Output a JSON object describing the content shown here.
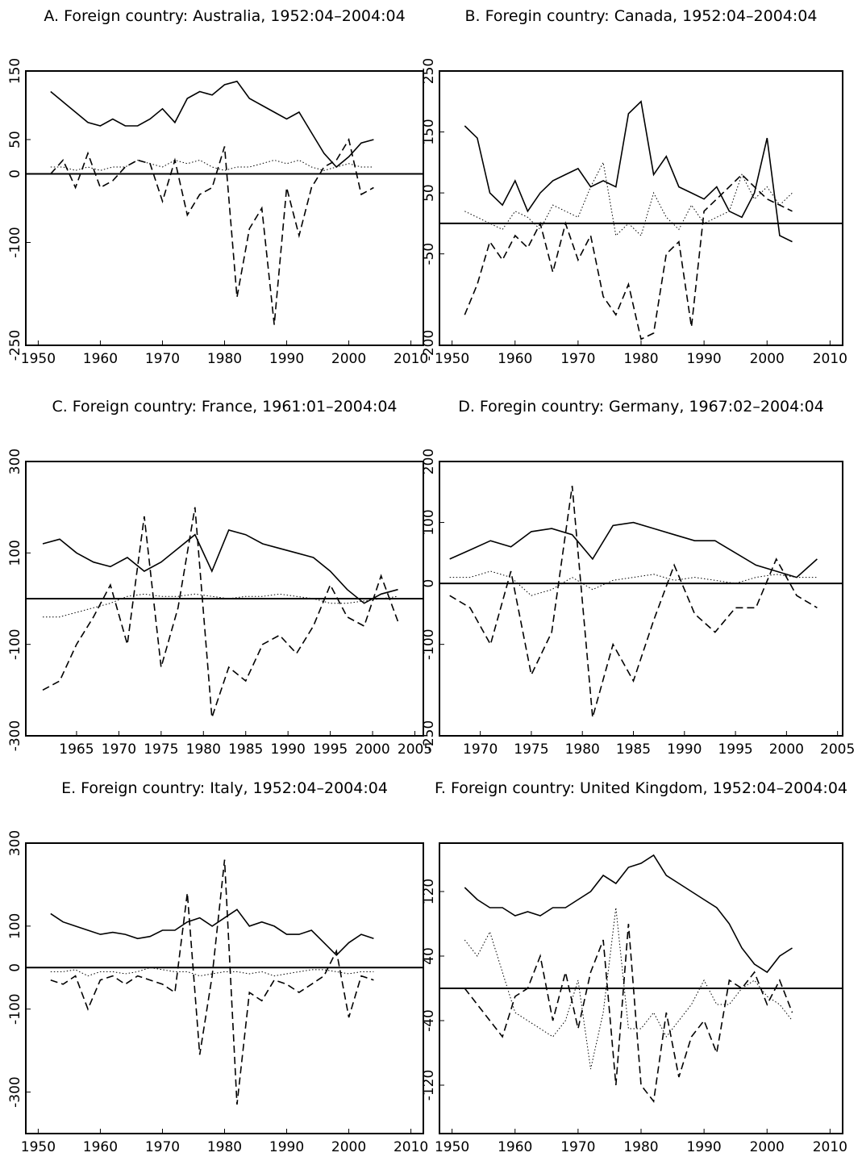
{
  "chart_data": [
    {
      "type": "line",
      "title": "A. Foreign country: Australia, 1952:04–2004:04",
      "x": [
        1952,
        1954,
        1956,
        1958,
        1960,
        1962,
        1964,
        1966,
        1968,
        1970,
        1972,
        1974,
        1976,
        1978,
        1980,
        1982,
        1984,
        1986,
        1988,
        1990,
        1992,
        1994,
        1996,
        1998,
        2000,
        2002,
        2004
      ],
      "series": [
        {
          "color": "#000000",
          "style": "solid",
          "values": [
            120,
            105,
            90,
            75,
            70,
            80,
            70,
            70,
            80,
            95,
            75,
            110,
            120,
            115,
            130,
            135,
            110,
            100,
            90,
            80,
            90,
            60,
            30,
            10,
            25,
            45,
            50
          ]
        },
        {
          "color": "#000000",
          "style": "dashed",
          "values": [
            0,
            20,
            -20,
            30,
            -20,
            -10,
            10,
            20,
            15,
            -40,
            20,
            -60,
            -30,
            -20,
            40,
            -180,
            -80,
            -50,
            -220,
            -20,
            -90,
            -20,
            10,
            20,
            50,
            -30,
            -20
          ]
        },
        {
          "color": "#000000",
          "style": "dotted",
          "values": [
            10,
            10,
            5,
            10,
            5,
            10,
            10,
            20,
            15,
            10,
            20,
            15,
            20,
            10,
            5,
            10,
            10,
            15,
            20,
            15,
            20,
            10,
            5,
            10,
            15,
            10,
            10
          ]
        }
      ],
      "xlim": [
        1948,
        2012
      ],
      "ylim": [
        -250,
        150
      ],
      "xticks": [
        1950,
        1960,
        1970,
        1980,
        1990,
        2000,
        2010
      ],
      "yticks": [
        -250,
        -100,
        0,
        50,
        150
      ],
      "reference_line": 0
    },
    {
      "type": "line",
      "title": "B. Foregin country: Canada, 1952:04–2004:04",
      "x": [
        1952,
        1954,
        1956,
        1958,
        1960,
        1962,
        1964,
        1966,
        1968,
        1970,
        1972,
        1974,
        1976,
        1978,
        1980,
        1982,
        1984,
        1986,
        1988,
        1990,
        1992,
        1994,
        1996,
        1998,
        2000,
        2002,
        2004
      ],
      "series": [
        {
          "color": "#000000",
          "style": "solid",
          "values": [
            160,
            140,
            50,
            30,
            70,
            20,
            50,
            70,
            80,
            90,
            60,
            70,
            60,
            180,
            200,
            80,
            110,
            60,
            50,
            40,
            60,
            20,
            10,
            50,
            140,
            -20,
            -30
          ]
        },
        {
          "color": "#000000",
          "style": "dashed",
          "values": [
            -150,
            -100,
            -30,
            -60,
            -20,
            -40,
            0,
            -80,
            0,
            -60,
            -20,
            -120,
            -150,
            -100,
            -190,
            -180,
            -50,
            -30,
            -170,
            20,
            40,
            60,
            80,
            60,
            40,
            30,
            20
          ]
        },
        {
          "color": "#000000",
          "style": "dotted",
          "values": [
            20,
            10,
            0,
            -10,
            20,
            10,
            -10,
            30,
            20,
            10,
            60,
            100,
            -20,
            0,
            -20,
            50,
            10,
            -10,
            30,
            0,
            10,
            20,
            80,
            40,
            60,
            30,
            50
          ]
        }
      ],
      "xlim": [
        1948,
        2012
      ],
      "ylim": [
        -200,
        250
      ],
      "xticks": [
        1950,
        1960,
        1970,
        1980,
        1990,
        2000,
        2010
      ],
      "yticks": [
        -200,
        -50,
        50,
        150,
        250
      ],
      "reference_line": 0
    },
    {
      "type": "line",
      "title": "C. Foreign country: France, 1961:01–2004:04",
      "x": [
        1961,
        1963,
        1965,
        1967,
        1969,
        1971,
        1973,
        1975,
        1977,
        1979,
        1981,
        1983,
        1985,
        1987,
        1989,
        1991,
        1993,
        1995,
        1997,
        1999,
        2001,
        2003
      ],
      "series": [
        {
          "color": "#000000",
          "style": "solid",
          "values": [
            120,
            130,
            100,
            80,
            70,
            90,
            60,
            80,
            110,
            140,
            60,
            150,
            140,
            120,
            110,
            100,
            90,
            60,
            20,
            -10,
            10,
            20
          ]
        },
        {
          "color": "#000000",
          "style": "dashed",
          "values": [
            -200,
            -180,
            -100,
            -40,
            30,
            -100,
            180,
            -150,
            -20,
            200,
            -260,
            -150,
            -180,
            -100,
            -80,
            -120,
            -60,
            30,
            -40,
            -60,
            50,
            -50
          ]
        },
        {
          "color": "#000000",
          "style": "dotted",
          "values": [
            -40,
            -40,
            -30,
            -20,
            -10,
            5,
            10,
            5,
            5,
            10,
            5,
            0,
            5,
            5,
            10,
            5,
            0,
            -10,
            -10,
            -5,
            0,
            5
          ]
        }
      ],
      "xlim": [
        1959,
        2006
      ],
      "ylim": [
        -300,
        300
      ],
      "xticks": [
        1965,
        1970,
        1975,
        1980,
        1985,
        1990,
        1995,
        2000,
        2005
      ],
      "yticks": [
        -300,
        -100,
        100,
        300
      ],
      "reference_line": 0
    },
    {
      "type": "line",
      "title": "D. Foregin country: Germany, 1967:02–2004:04",
      "x": [
        1967,
        1969,
        1971,
        1973,
        1975,
        1977,
        1979,
        1981,
        1983,
        1985,
        1987,
        1989,
        1991,
        1993,
        1995,
        1997,
        1999,
        2001,
        2003
      ],
      "series": [
        {
          "color": "#000000",
          "style": "solid",
          "values": [
            40,
            55,
            70,
            60,
            85,
            90,
            80,
            40,
            95,
            100,
            90,
            80,
            70,
            70,
            50,
            30,
            20,
            10,
            40
          ]
        },
        {
          "color": "#000000",
          "style": "dashed",
          "values": [
            -20,
            -40,
            -100,
            20,
            -150,
            -80,
            160,
            -220,
            -100,
            -160,
            -60,
            30,
            -50,
            -80,
            -40,
            -40,
            40,
            -20,
            -40
          ]
        },
        {
          "color": "#000000",
          "style": "dotted",
          "values": [
            10,
            10,
            20,
            10,
            -20,
            -10,
            10,
            -10,
            5,
            10,
            15,
            5,
            10,
            5,
            0,
            10,
            15,
            10,
            10
          ]
        }
      ],
      "xlim": [
        1966,
        2005.5
      ],
      "ylim": [
        -250,
        200
      ],
      "xticks": [
        1970,
        1975,
        1980,
        1985,
        1990,
        1995,
        2000,
        2005
      ],
      "yticks": [
        -250,
        -100,
        0,
        100,
        200
      ],
      "reference_line": 0
    },
    {
      "type": "line",
      "title": "E. Foreign country: Italy, 1952:04–2004:04",
      "x": [
        1952,
        1954,
        1956,
        1958,
        1960,
        1962,
        1964,
        1966,
        1968,
        1970,
        1972,
        1974,
        1976,
        1978,
        1980,
        1982,
        1984,
        1986,
        1988,
        1990,
        1992,
        1994,
        1996,
        1998,
        2000,
        2002,
        2004
      ],
      "series": [
        {
          "color": "#000000",
          "style": "solid",
          "values": [
            130,
            110,
            100,
            90,
            80,
            85,
            80,
            70,
            75,
            90,
            90,
            110,
            120,
            100,
            120,
            140,
            100,
            110,
            100,
            80,
            80,
            90,
            60,
            30,
            60,
            80,
            70
          ]
        },
        {
          "color": "#000000",
          "style": "dashed",
          "values": [
            -30,
            -40,
            -20,
            -100,
            -30,
            -20,
            -40,
            -20,
            -30,
            -40,
            -60,
            180,
            -210,
            -20,
            260,
            -330,
            -60,
            -80,
            -30,
            -40,
            -60,
            -40,
            -20,
            40,
            -120,
            -20,
            -30
          ]
        },
        {
          "color": "#000000",
          "style": "dotted",
          "values": [
            -10,
            -10,
            -5,
            -20,
            -10,
            -10,
            -15,
            -10,
            0,
            -5,
            -10,
            -10,
            -20,
            -15,
            -10,
            -10,
            -15,
            -10,
            -20,
            -15,
            -10,
            -5,
            -5,
            -10,
            -15,
            -10,
            -10
          ]
        }
      ],
      "xlim": [
        1948,
        2012
      ],
      "ylim": [
        -400,
        300
      ],
      "xticks": [
        1950,
        1960,
        1970,
        1980,
        1990,
        2000,
        2010
      ],
      "yticks": [
        -300,
        -100,
        0,
        100,
        300
      ],
      "reference_line": 0
    },
    {
      "type": "line",
      "title": "F. Foreign country: United Kingdom, 1952:04–2004:04",
      "x": [
        1952,
        1954,
        1956,
        1958,
        1960,
        1962,
        1964,
        1966,
        1968,
        1970,
        1972,
        1974,
        1976,
        1978,
        1980,
        1982,
        1984,
        1986,
        1988,
        1990,
        1992,
        1994,
        1996,
        1998,
        2000,
        2002,
        2004
      ],
      "series": [
        {
          "color": "#000000",
          "style": "solid",
          "values": [
            125,
            110,
            100,
            100,
            90,
            95,
            90,
            100,
            100,
            110,
            120,
            140,
            130,
            150,
            155,
            165,
            140,
            130,
            120,
            110,
            100,
            80,
            50,
            30,
            20,
            40,
            50
          ]
        },
        {
          "color": "#000000",
          "style": "dashed",
          "values": [
            0,
            -20,
            -40,
            -60,
            -10,
            0,
            40,
            -40,
            20,
            -50,
            20,
            60,
            -120,
            80,
            -120,
            -140,
            -30,
            -110,
            -60,
            -40,
            -80,
            10,
            0,
            20,
            -20,
            10,
            -30
          ]
        },
        {
          "color": "#000000",
          "style": "dotted",
          "values": [
            60,
            40,
            70,
            20,
            -30,
            -40,
            -50,
            -60,
            -40,
            10,
            -100,
            -30,
            100,
            -50,
            -50,
            -30,
            -60,
            -40,
            -20,
            10,
            -20,
            -20,
            0,
            10,
            -10,
            -20,
            -40
          ]
        }
      ],
      "xlim": [
        1948,
        2012
      ],
      "ylim": [
        -180,
        180
      ],
      "xticks": [
        1950,
        1960,
        1970,
        1980,
        1990,
        2000,
        2010
      ],
      "yticks": [
        -120,
        -40,
        40,
        120
      ],
      "reference_line": 0
    }
  ]
}
